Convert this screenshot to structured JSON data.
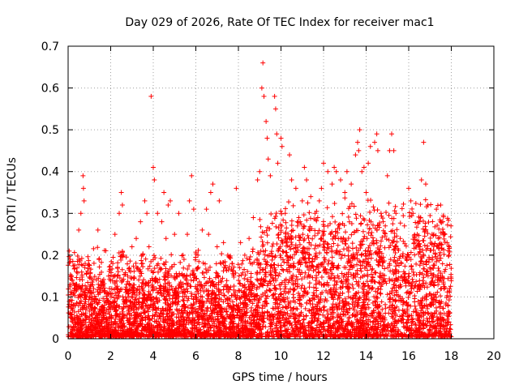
{
  "chart_data": {
    "type": "scatter",
    "title": "Day 029 of 2026, Rate Of TEC Index for receiver mac1",
    "xlabel": "GPS time / hours",
    "ylabel": "ROTI / TECUs",
    "xlim": [
      0,
      20
    ],
    "ylim": [
      0,
      0.7
    ],
    "xticks": [
      0,
      2,
      4,
      6,
      8,
      10,
      12,
      14,
      16,
      18,
      20
    ],
    "yticks": [
      0,
      0.1,
      0.2,
      0.3,
      0.4,
      0.5,
      0.6,
      0.7
    ],
    "xtick_labels": [
      "0",
      "2",
      "4",
      "6",
      "8",
      "10",
      "12",
      "14",
      "16",
      "18",
      "20"
    ],
    "ytick_labels": [
      "0",
      "0.1",
      "0.2",
      "0.3",
      "0.4",
      "0.5",
      "0.6",
      "0.7"
    ],
    "grid": true,
    "marker": "plus",
    "color": "#ff0000",
    "series": [
      {
        "values_note_free": true,
        "points": [
          [
            0.05,
            0.21
          ],
          [
            0.1,
            0.19
          ],
          [
            0.2,
            0.14
          ],
          [
            0.3,
            0.12
          ],
          [
            0.4,
            0.16
          ],
          [
            0.5,
            0.26
          ],
          [
            0.6,
            0.3
          ],
          [
            0.7,
            0.39
          ],
          [
            0.72,
            0.36
          ],
          [
            0.75,
            0.33
          ],
          [
            0.8,
            0.18
          ],
          [
            0.9,
            0.12
          ],
          [
            1.0,
            0.1
          ],
          [
            1.2,
            0.12
          ],
          [
            1.4,
            0.26
          ],
          [
            1.45,
            0.19
          ],
          [
            1.5,
            0.11
          ],
          [
            1.7,
            0.08
          ],
          [
            1.9,
            0.15
          ],
          [
            2.1,
            0.18
          ],
          [
            2.2,
            0.25
          ],
          [
            2.3,
            0.12
          ],
          [
            2.4,
            0.3
          ],
          [
            2.5,
            0.35
          ],
          [
            2.55,
            0.32
          ],
          [
            2.6,
            0.2
          ],
          [
            2.8,
            0.15
          ],
          [
            3.0,
            0.22
          ],
          [
            3.2,
            0.24
          ],
          [
            3.4,
            0.28
          ],
          [
            3.5,
            0.18
          ],
          [
            3.6,
            0.33
          ],
          [
            3.7,
            0.3
          ],
          [
            3.8,
            0.22
          ],
          [
            3.9,
            0.58
          ],
          [
            4.0,
            0.41
          ],
          [
            4.05,
            0.38
          ],
          [
            4.2,
            0.3
          ],
          [
            4.4,
            0.28
          ],
          [
            4.5,
            0.35
          ],
          [
            4.6,
            0.24
          ],
          [
            4.7,
            0.32
          ],
          [
            4.8,
            0.33
          ],
          [
            5.0,
            0.25
          ],
          [
            5.2,
            0.3
          ],
          [
            5.4,
            0.2
          ],
          [
            5.6,
            0.25
          ],
          [
            5.7,
            0.33
          ],
          [
            5.8,
            0.39
          ],
          [
            5.9,
            0.31
          ],
          [
            6.1,
            0.2
          ],
          [
            6.3,
            0.26
          ],
          [
            6.5,
            0.31
          ],
          [
            6.6,
            0.25
          ],
          [
            6.7,
            0.35
          ],
          [
            6.8,
            0.37
          ],
          [
            7.0,
            0.22
          ],
          [
            7.1,
            0.33
          ],
          [
            7.3,
            0.23
          ],
          [
            7.5,
            0.2
          ],
          [
            7.7,
            0.18
          ],
          [
            7.9,
            0.36
          ],
          [
            8.1,
            0.23
          ],
          [
            8.3,
            0.2
          ],
          [
            8.5,
            0.24
          ],
          [
            8.7,
            0.29
          ],
          [
            8.9,
            0.38
          ],
          [
            9.0,
            0.4
          ],
          [
            9.1,
            0.6
          ],
          [
            9.15,
            0.66
          ],
          [
            9.2,
            0.58
          ],
          [
            9.3,
            0.52
          ],
          [
            9.35,
            0.48
          ],
          [
            9.4,
            0.43
          ],
          [
            9.5,
            0.39
          ],
          [
            9.7,
            0.58
          ],
          [
            9.75,
            0.55
          ],
          [
            9.8,
            0.49
          ],
          [
            9.85,
            0.42
          ],
          [
            10.0,
            0.48
          ],
          [
            10.05,
            0.46
          ],
          [
            10.2,
            0.3
          ],
          [
            10.4,
            0.44
          ],
          [
            10.5,
            0.38
          ],
          [
            10.7,
            0.36
          ],
          [
            10.9,
            0.28
          ],
          [
            11.0,
            0.33
          ],
          [
            11.1,
            0.41
          ],
          [
            11.2,
            0.38
          ],
          [
            11.4,
            0.34
          ],
          [
            11.6,
            0.3
          ],
          [
            11.8,
            0.33
          ],
          [
            11.9,
            0.36
          ],
          [
            12.0,
            0.42
          ],
          [
            12.2,
            0.4
          ],
          [
            12.4,
            0.37
          ],
          [
            12.5,
            0.41
          ],
          [
            12.6,
            0.4
          ],
          [
            12.8,
            0.38
          ],
          [
            13.0,
            0.35
          ],
          [
            13.1,
            0.4
          ],
          [
            13.3,
            0.37
          ],
          [
            13.5,
            0.44
          ],
          [
            13.6,
            0.47
          ],
          [
            13.65,
            0.45
          ],
          [
            13.7,
            0.5
          ],
          [
            13.8,
            0.4
          ],
          [
            13.9,
            0.41
          ],
          [
            14.0,
            0.35
          ],
          [
            14.1,
            0.42
          ],
          [
            14.2,
            0.46
          ],
          [
            14.4,
            0.47
          ],
          [
            14.5,
            0.49
          ],
          [
            14.55,
            0.45
          ],
          [
            14.7,
            0.3
          ],
          [
            14.8,
            0.28
          ],
          [
            14.9,
            0.27
          ],
          [
            15.0,
            0.39
          ],
          [
            15.1,
            0.45
          ],
          [
            15.2,
            0.49
          ],
          [
            15.3,
            0.45
          ],
          [
            15.4,
            0.3
          ],
          [
            15.6,
            0.24
          ],
          [
            15.8,
            0.27
          ],
          [
            16.0,
            0.36
          ],
          [
            16.1,
            0.33
          ],
          [
            16.2,
            0.3
          ],
          [
            16.4,
            0.25
          ],
          [
            16.6,
            0.38
          ],
          [
            16.7,
            0.47
          ],
          [
            16.8,
            0.37
          ],
          [
            16.9,
            0.32
          ],
          [
            17.1,
            0.25
          ],
          [
            17.3,
            0.31
          ],
          [
            17.5,
            0.32
          ],
          [
            17.6,
            0.28
          ],
          [
            17.7,
            0.25
          ],
          [
            17.8,
            0.23
          ],
          [
            17.9,
            0.22
          ]
        ]
      }
    ]
  }
}
